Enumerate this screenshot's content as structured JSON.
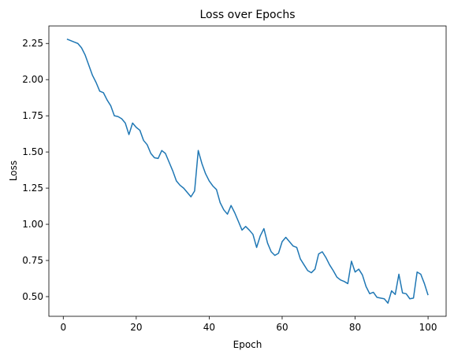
{
  "chart_data": {
    "type": "line",
    "title": "Loss over Epochs",
    "x_label": "Epoch",
    "y_label": "Loss",
    "x": [
      1,
      2,
      3,
      4,
      5,
      6,
      7,
      8,
      9,
      10,
      11,
      12,
      13,
      14,
      15,
      16,
      17,
      18,
      19,
      20,
      21,
      22,
      23,
      24,
      25,
      26,
      27,
      28,
      29,
      30,
      31,
      32,
      33,
      34,
      35,
      36,
      37,
      38,
      39,
      40,
      41,
      42,
      43,
      44,
      45,
      46,
      47,
      48,
      49,
      50,
      51,
      52,
      53,
      54,
      55,
      56,
      57,
      58,
      59,
      60,
      61,
      62,
      63,
      64,
      65,
      66,
      67,
      68,
      69,
      70,
      71,
      72,
      73,
      74,
      75,
      76,
      77,
      78,
      79,
      80,
      81,
      82,
      83,
      84,
      85,
      86,
      87,
      88,
      89,
      90,
      91,
      92,
      93,
      94,
      95,
      96,
      97,
      98,
      99,
      100
    ],
    "series": [
      {
        "name": "Loss",
        "color": "#1f77b4",
        "values": [
          2.28,
          2.27,
          2.26,
          2.25,
          2.22,
          2.17,
          2.1,
          2.03,
          1.98,
          1.92,
          1.91,
          1.86,
          1.82,
          1.75,
          1.745,
          1.73,
          1.7,
          1.62,
          1.7,
          1.67,
          1.65,
          1.58,
          1.55,
          1.49,
          1.46,
          1.455,
          1.51,
          1.49,
          1.43,
          1.37,
          1.3,
          1.27,
          1.25,
          1.22,
          1.19,
          1.23,
          1.51,
          1.42,
          1.35,
          1.3,
          1.265,
          1.24,
          1.15,
          1.1,
          1.07,
          1.13,
          1.08,
          1.02,
          0.96,
          0.985,
          0.96,
          0.93,
          0.84,
          0.92,
          0.97,
          0.87,
          0.81,
          0.785,
          0.8,
          0.88,
          0.91,
          0.88,
          0.85,
          0.84,
          0.76,
          0.72,
          0.68,
          0.665,
          0.69,
          0.795,
          0.81,
          0.77,
          0.72,
          0.68,
          0.635,
          0.615,
          0.605,
          0.59,
          0.745,
          0.67,
          0.69,
          0.65,
          0.57,
          0.52,
          0.53,
          0.495,
          0.49,
          0.485,
          0.455,
          0.54,
          0.515,
          0.655,
          0.525,
          0.52,
          0.485,
          0.49,
          0.67,
          0.655,
          0.59,
          0.51
        ]
      }
    ],
    "xlim": [
      -3.95,
      104.95
    ],
    "xticks": [
      0,
      20,
      40,
      60,
      80,
      100
    ],
    "ylim": [
      0.364,
      2.371
    ],
    "yticks": [
      {
        "value": 0.5,
        "label": "0.50"
      },
      0.75,
      {
        "value": 1.0,
        "label": "1.00"
      },
      1.25,
      {
        "value": 1.5,
        "label": "1.50"
      },
      1.75,
      {
        "value": 2.0,
        "label": "2.00"
      },
      2.25
    ],
    "grid": false
  }
}
